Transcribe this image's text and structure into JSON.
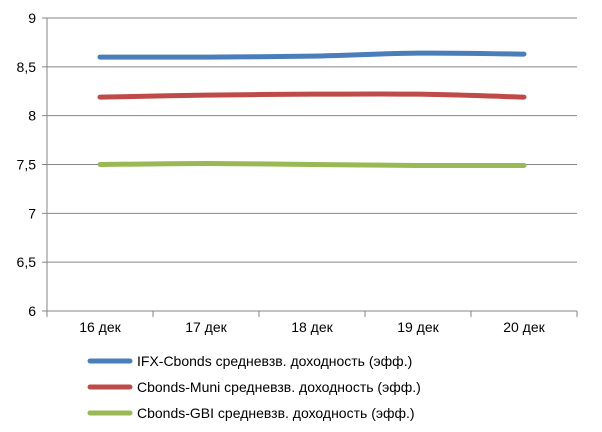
{
  "chart_data": {
    "type": "line",
    "title": "",
    "xlabel": "",
    "ylabel": "",
    "categories": [
      "16 дек",
      "17 дек",
      "18 дек",
      "19 дек",
      "20 дек"
    ],
    "ylim": [
      6,
      9
    ],
    "yticks": [
      6,
      6.5,
      7,
      7.5,
      8,
      8.5,
      9
    ],
    "ytick_labels": [
      "6",
      "6,5",
      "7",
      "7,5",
      "8",
      "8,5",
      "9"
    ],
    "grid": true,
    "legend_position": "bottom",
    "series": [
      {
        "name": "IFX-Cbonds средневзв. доходность (эфф.)",
        "values": [
          8.6,
          8.6,
          8.61,
          8.64,
          8.63
        ],
        "color": "#4a7ebb"
      },
      {
        "name": "Cbonds-Muni средневзв. доходность (эфф.)",
        "values": [
          8.19,
          8.21,
          8.22,
          8.22,
          8.19
        ],
        "color": "#be4b48"
      },
      {
        "name": "Cbonds-GBI средневзв. доходность (эфф.)",
        "values": [
          7.5,
          7.51,
          7.5,
          7.49,
          7.49
        ],
        "color": "#98b954"
      }
    ]
  }
}
